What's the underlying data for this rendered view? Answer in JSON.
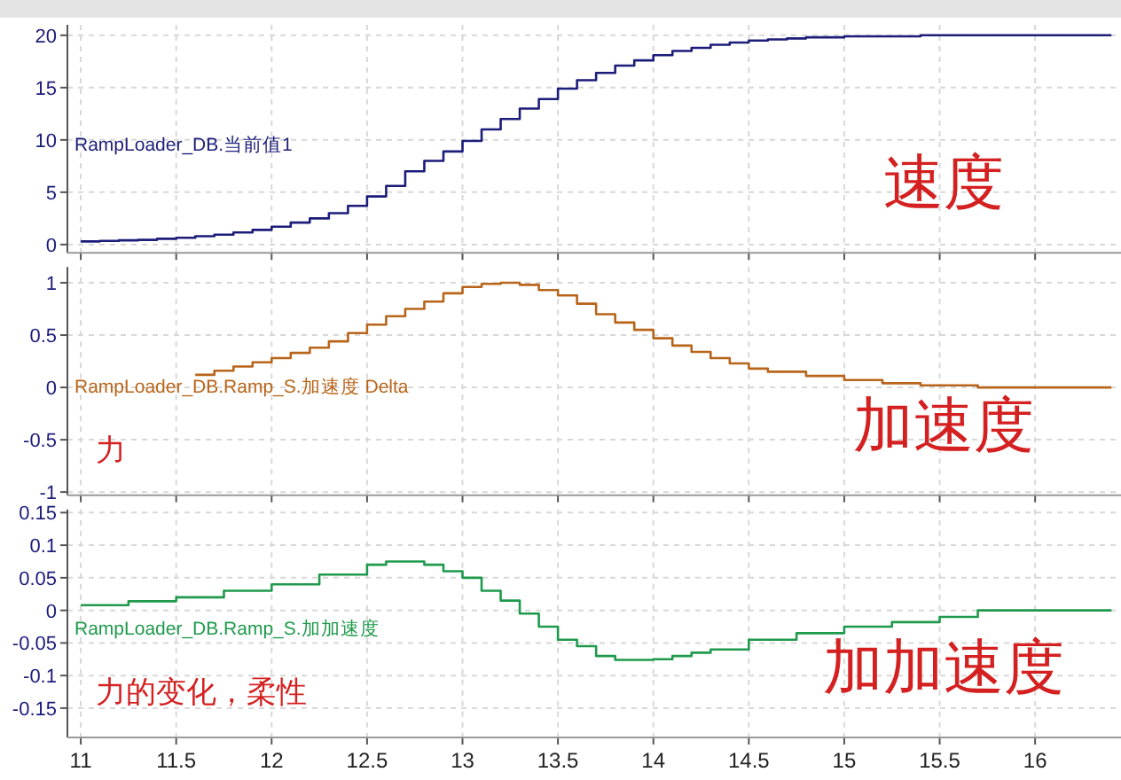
{
  "chart_data": [
    {
      "type": "step",
      "x": [
        11.0,
        11.1,
        11.2,
        11.3,
        11.4,
        11.5,
        11.6,
        11.7,
        11.8,
        11.9,
        12.0,
        12.1,
        12.2,
        12.3,
        12.4,
        12.5,
        12.6,
        12.7,
        12.8,
        12.9,
        13.0,
        13.1,
        13.2,
        13.3,
        13.4,
        13.5,
        13.6,
        13.7,
        13.8,
        13.9,
        14.0,
        14.1,
        14.2,
        14.3,
        14.4,
        14.5,
        14.6,
        14.7,
        14.8,
        15.0,
        15.4,
        16.4
      ],
      "series": [
        {
          "name": "RampLoader_DB.当前值1",
          "color": "#1c1c7a",
          "values": [
            0.3,
            0.35,
            0.4,
            0.45,
            0.55,
            0.65,
            0.8,
            0.95,
            1.15,
            1.4,
            1.7,
            2.1,
            2.5,
            3.0,
            3.7,
            4.6,
            5.6,
            7.0,
            8.0,
            8.9,
            9.9,
            11.0,
            12.0,
            13.0,
            13.9,
            14.9,
            15.7,
            16.4,
            17.1,
            17.6,
            18.1,
            18.5,
            18.8,
            19.1,
            19.3,
            19.5,
            19.6,
            19.7,
            19.8,
            19.9,
            20.0,
            20.0
          ]
        }
      ],
      "xlim": [
        10.93,
        16.45
      ],
      "xticks": [
        11,
        11.5,
        12,
        12.5,
        13,
        13.5,
        14,
        14.5,
        15,
        15.5,
        16
      ],
      "ylim": [
        -0.8,
        21
      ],
      "yticks": [
        0,
        5,
        10,
        15,
        20
      ],
      "grid": true,
      "tick_labels": "y",
      "annotations": [
        "速度"
      ]
    },
    {
      "type": "step",
      "x": [
        11.6,
        11.7,
        11.8,
        11.9,
        12.0,
        12.1,
        12.2,
        12.3,
        12.4,
        12.5,
        12.6,
        12.7,
        12.8,
        12.9,
        13.0,
        13.1,
        13.2,
        13.3,
        13.4,
        13.5,
        13.6,
        13.7,
        13.8,
        13.9,
        14.0,
        14.1,
        14.2,
        14.3,
        14.4,
        14.5,
        14.6,
        14.8,
        15.0,
        15.2,
        15.4,
        15.7,
        16.4
      ],
      "series": [
        {
          "name": "RampLoader_DB.Ramp_S.加速度 Delta",
          "color": "#b8651a",
          "values": [
            0.12,
            0.16,
            0.2,
            0.24,
            0.28,
            0.33,
            0.38,
            0.44,
            0.52,
            0.6,
            0.68,
            0.75,
            0.82,
            0.9,
            0.96,
            0.99,
            1.0,
            0.98,
            0.93,
            0.88,
            0.8,
            0.7,
            0.62,
            0.55,
            0.47,
            0.4,
            0.34,
            0.28,
            0.23,
            0.18,
            0.15,
            0.11,
            0.07,
            0.04,
            0.02,
            0.0,
            0.0
          ]
        }
      ],
      "xlim": [
        10.93,
        16.45
      ],
      "xticks": [
        11,
        11.5,
        12,
        12.5,
        13,
        13.5,
        14,
        14.5,
        15,
        15.5,
        16
      ],
      "ylim": [
        -1.03,
        1.15
      ],
      "yticks": [
        -1,
        -0.5,
        0,
        0.5,
        1
      ],
      "grid": true,
      "tick_labels": "y",
      "annotations": [
        "力",
        "加速度"
      ]
    },
    {
      "type": "step",
      "x": [
        11.0,
        11.25,
        11.5,
        11.75,
        12.0,
        12.25,
        12.5,
        12.6,
        12.8,
        12.9,
        13.0,
        13.1,
        13.2,
        13.3,
        13.4,
        13.5,
        13.6,
        13.7,
        13.8,
        14.0,
        14.1,
        14.2,
        14.3,
        14.5,
        14.75,
        15.0,
        15.25,
        15.5,
        15.7,
        16.4
      ],
      "series": [
        {
          "name": "RampLoader_DB.Ramp_S.加加速度",
          "color": "#1f9a4c",
          "values": [
            0.008,
            0.014,
            0.02,
            0.03,
            0.04,
            0.055,
            0.07,
            0.075,
            0.07,
            0.06,
            0.05,
            0.03,
            0.015,
            -0.005,
            -0.025,
            -0.045,
            -0.055,
            -0.07,
            -0.076,
            -0.075,
            -0.07,
            -0.065,
            -0.06,
            -0.045,
            -0.035,
            -0.025,
            -0.018,
            -0.01,
            0.0,
            0.0
          ]
        }
      ],
      "xlim": [
        10.93,
        16.45
      ],
      "xticks": [
        11,
        11.5,
        12,
        12.5,
        13,
        13.5,
        14,
        14.5,
        15,
        15.5,
        16
      ],
      "ylim": [
        -0.195,
        0.155
      ],
      "yticks": [
        -0.15,
        -0.1,
        -0.05,
        0,
        0.05,
        0.1,
        0.15
      ],
      "grid": true,
      "annotations": [
        "力的变化，柔性",
        "加加速度"
      ]
    }
  ]
}
